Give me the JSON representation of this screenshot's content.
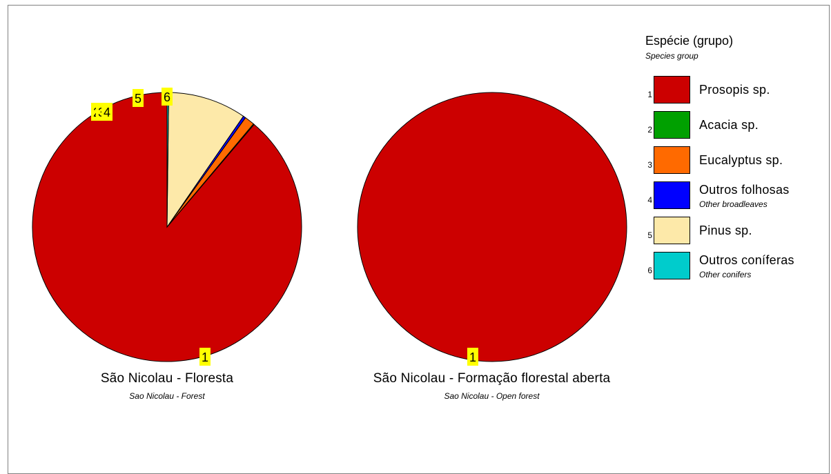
{
  "chart_data": [
    {
      "type": "pie",
      "title": "São Nicolau  - Floresta",
      "subtitle": "Sao Nicolau - Forest",
      "slices": [
        {
          "id": "1",
          "name": "Prosopis sp.",
          "value": 88.8,
          "color": "#cc0000"
        },
        {
          "id": "2",
          "name": "Acacia sp.",
          "value": 0.1,
          "color": "#00a000"
        },
        {
          "id": "3",
          "name": "Eucalyptus sp.",
          "value": 1.2,
          "color": "#ff6a00"
        },
        {
          "id": "4",
          "name": "Outros folhosas",
          "value": 0.3,
          "color": "#0000ff"
        },
        {
          "id": "5",
          "name": "Pinus sp.",
          "value": 9.4,
          "color": "#fde9a9"
        },
        {
          "id": "6",
          "name": "Outros coníferas",
          "value": 0.2,
          "color": "#00cccc"
        }
      ]
    },
    {
      "type": "pie",
      "title": "São Nicolau - Formação florestal aberta",
      "subtitle": "Sao Nicolau - Open forest",
      "slices": [
        {
          "id": "1",
          "name": "Prosopis sp.",
          "value": 100,
          "color": "#cc0000"
        }
      ]
    }
  ],
  "legend": {
    "title": "Espécie (grupo)",
    "subtitle": "Species group",
    "items": [
      {
        "num": "1",
        "label": "Prosopis sp.",
        "sublabel": "",
        "color": "#cc0000"
      },
      {
        "num": "2",
        "label": "Acacia sp.",
        "sublabel": "",
        "color": "#00a000"
      },
      {
        "num": "3",
        "label": "Eucalyptus sp.",
        "sublabel": "",
        "color": "#ff6a00"
      },
      {
        "num": "4",
        "label": "Outros folhosas",
        "sublabel": "Other broadleaves",
        "color": "#0000ff"
      },
      {
        "num": "5",
        "label": "Pinus sp.",
        "sublabel": "",
        "color": "#fde9a9"
      },
      {
        "num": "6",
        "label": "Outros coníferas",
        "sublabel": "Other conifers",
        "color": "#00cccc"
      }
    ]
  }
}
